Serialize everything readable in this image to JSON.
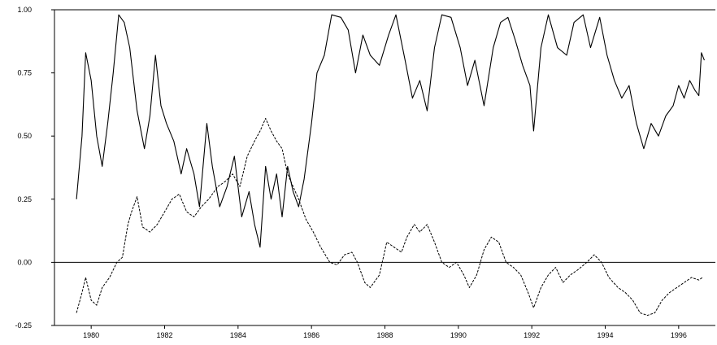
{
  "chart_data": {
    "type": "line",
    "title": "",
    "xlabel": "",
    "ylabel": "",
    "xlim": [
      1979.0,
      1997.0
    ],
    "ylim": [
      -0.25,
      1.0
    ],
    "x_ticks": [
      1980,
      1982,
      1984,
      1986,
      1988,
      1990,
      1992,
      1994,
      1996
    ],
    "x_tick_labels": [
      "1980",
      "1982",
      "1984",
      "1986",
      "1988",
      "1990",
      "1992",
      "1994",
      "1996"
    ],
    "y_ticks": [
      -0.25,
      0.0,
      0.25,
      0.5,
      0.75,
      1.0
    ],
    "y_tick_labels": [
      "-0.25",
      "0.00",
      "0.25",
      "0.50",
      "0.75",
      "1.00"
    ],
    "reference_lines_y": [
      0.0,
      1.0
    ],
    "grid": false,
    "legend": "none",
    "series": [
      {
        "style": "solid",
        "points": [
          [
            1979.6,
            0.25
          ],
          [
            1979.75,
            0.5
          ],
          [
            1979.85,
            0.83
          ],
          [
            1980.0,
            0.72
          ],
          [
            1980.15,
            0.5
          ],
          [
            1980.3,
            0.38
          ],
          [
            1980.45,
            0.55
          ],
          [
            1980.6,
            0.75
          ],
          [
            1980.75,
            0.98
          ],
          [
            1980.9,
            0.95
          ],
          [
            1981.05,
            0.85
          ],
          [
            1981.25,
            0.6
          ],
          [
            1981.45,
            0.45
          ],
          [
            1981.6,
            0.58
          ],
          [
            1981.75,
            0.82
          ],
          [
            1981.9,
            0.62
          ],
          [
            1982.05,
            0.55
          ],
          [
            1982.25,
            0.48
          ],
          [
            1982.45,
            0.35
          ],
          [
            1982.6,
            0.45
          ],
          [
            1982.8,
            0.35
          ],
          [
            1982.95,
            0.22
          ],
          [
            1983.15,
            0.55
          ],
          [
            1983.3,
            0.38
          ],
          [
            1983.5,
            0.22
          ],
          [
            1983.7,
            0.3
          ],
          [
            1983.9,
            0.42
          ],
          [
            1984.1,
            0.18
          ],
          [
            1984.3,
            0.28
          ],
          [
            1984.45,
            0.15
          ],
          [
            1984.6,
            0.06
          ],
          [
            1984.75,
            0.38
          ],
          [
            1984.9,
            0.25
          ],
          [
            1985.05,
            0.35
          ],
          [
            1985.2,
            0.18
          ],
          [
            1985.35,
            0.38
          ],
          [
            1985.5,
            0.28
          ],
          [
            1985.65,
            0.22
          ],
          [
            1985.8,
            0.33
          ],
          [
            1986.0,
            0.55
          ],
          [
            1986.15,
            0.75
          ],
          [
            1986.35,
            0.82
          ],
          [
            1986.55,
            0.98
          ],
          [
            1986.8,
            0.97
          ],
          [
            1987.0,
            0.92
          ],
          [
            1987.2,
            0.75
          ],
          [
            1987.4,
            0.9
          ],
          [
            1987.6,
            0.82
          ],
          [
            1987.85,
            0.78
          ],
          [
            1988.1,
            0.9
          ],
          [
            1988.3,
            0.98
          ],
          [
            1988.55,
            0.8
          ],
          [
            1988.75,
            0.65
          ],
          [
            1988.95,
            0.72
          ],
          [
            1989.15,
            0.6
          ],
          [
            1989.35,
            0.85
          ],
          [
            1989.55,
            0.98
          ],
          [
            1989.8,
            0.97
          ],
          [
            1990.05,
            0.85
          ],
          [
            1990.25,
            0.7
          ],
          [
            1990.45,
            0.8
          ],
          [
            1990.7,
            0.62
          ],
          [
            1990.95,
            0.85
          ],
          [
            1991.15,
            0.95
          ],
          [
            1991.35,
            0.97
          ],
          [
            1991.55,
            0.88
          ],
          [
            1991.75,
            0.78
          ],
          [
            1991.95,
            0.7
          ],
          [
            1992.05,
            0.52
          ],
          [
            1992.25,
            0.85
          ],
          [
            1992.45,
            0.98
          ],
          [
            1992.7,
            0.85
          ],
          [
            1992.95,
            0.82
          ],
          [
            1993.15,
            0.95
          ],
          [
            1993.4,
            0.98
          ],
          [
            1993.6,
            0.85
          ],
          [
            1993.85,
            0.97
          ],
          [
            1994.05,
            0.82
          ],
          [
            1994.25,
            0.72
          ],
          [
            1994.45,
            0.65
          ],
          [
            1994.65,
            0.7
          ],
          [
            1994.85,
            0.55
          ],
          [
            1995.05,
            0.45
          ],
          [
            1995.25,
            0.55
          ],
          [
            1995.45,
            0.5
          ],
          [
            1995.65,
            0.58
          ],
          [
            1995.85,
            0.62
          ],
          [
            1996.0,
            0.7
          ],
          [
            1996.15,
            0.65
          ],
          [
            1996.3,
            0.72
          ],
          [
            1996.45,
            0.68
          ],
          [
            1996.55,
            0.66
          ],
          [
            1996.62,
            0.83
          ],
          [
            1996.7,
            0.8
          ]
        ]
      },
      {
        "style": "dashed",
        "points": [
          [
            1979.6,
            -0.2
          ],
          [
            1979.75,
            -0.12
          ],
          [
            1979.85,
            -0.06
          ],
          [
            1980.0,
            -0.15
          ],
          [
            1980.15,
            -0.17
          ],
          [
            1980.3,
            -0.1
          ],
          [
            1980.5,
            -0.06
          ],
          [
            1980.7,
            0.0
          ],
          [
            1980.85,
            0.02
          ],
          [
            1981.0,
            0.15
          ],
          [
            1981.1,
            0.2
          ],
          [
            1981.25,
            0.26
          ],
          [
            1981.4,
            0.14
          ],
          [
            1981.6,
            0.12
          ],
          [
            1981.8,
            0.15
          ],
          [
            1982.0,
            0.2
          ],
          [
            1982.2,
            0.25
          ],
          [
            1982.4,
            0.27
          ],
          [
            1982.6,
            0.2
          ],
          [
            1982.8,
            0.18
          ],
          [
            1983.0,
            0.22
          ],
          [
            1983.2,
            0.25
          ],
          [
            1983.45,
            0.3
          ],
          [
            1983.65,
            0.32
          ],
          [
            1983.85,
            0.35
          ],
          [
            1984.05,
            0.3
          ],
          [
            1984.25,
            0.42
          ],
          [
            1984.45,
            0.48
          ],
          [
            1984.6,
            0.52
          ],
          [
            1984.75,
            0.57
          ],
          [
            1984.9,
            0.52
          ],
          [
            1985.05,
            0.48
          ],
          [
            1985.2,
            0.45
          ],
          [
            1985.35,
            0.35
          ],
          [
            1985.5,
            0.3
          ],
          [
            1985.65,
            0.25
          ],
          [
            1985.85,
            0.17
          ],
          [
            1986.05,
            0.12
          ],
          [
            1986.25,
            0.06
          ],
          [
            1986.5,
            0.0
          ],
          [
            1986.7,
            -0.01
          ],
          [
            1986.9,
            0.03
          ],
          [
            1987.1,
            0.04
          ],
          [
            1987.25,
            0.0
          ],
          [
            1987.45,
            -0.08
          ],
          [
            1987.6,
            -0.1
          ],
          [
            1987.85,
            -0.05
          ],
          [
            1988.05,
            0.08
          ],
          [
            1988.25,
            0.06
          ],
          [
            1988.45,
            0.04
          ],
          [
            1988.6,
            0.1
          ],
          [
            1988.8,
            0.15
          ],
          [
            1988.95,
            0.12
          ],
          [
            1989.15,
            0.15
          ],
          [
            1989.35,
            0.08
          ],
          [
            1989.55,
            0.0
          ],
          [
            1989.75,
            -0.02
          ],
          [
            1989.95,
            0.0
          ],
          [
            1990.15,
            -0.05
          ],
          [
            1990.3,
            -0.1
          ],
          [
            1990.5,
            -0.05
          ],
          [
            1990.7,
            0.05
          ],
          [
            1990.9,
            0.1
          ],
          [
            1991.1,
            0.08
          ],
          [
            1991.3,
            0.0
          ],
          [
            1991.5,
            -0.02
          ],
          [
            1991.7,
            -0.05
          ],
          [
            1991.9,
            -0.12
          ],
          [
            1992.05,
            -0.18
          ],
          [
            1992.25,
            -0.1
          ],
          [
            1992.45,
            -0.05
          ],
          [
            1992.65,
            -0.02
          ],
          [
            1992.85,
            -0.08
          ],
          [
            1993.05,
            -0.05
          ],
          [
            1993.25,
            -0.03
          ],
          [
            1993.5,
            0.0
          ],
          [
            1993.7,
            0.03
          ],
          [
            1993.9,
            0.0
          ],
          [
            1994.1,
            -0.06
          ],
          [
            1994.35,
            -0.1
          ],
          [
            1994.55,
            -0.12
          ],
          [
            1994.75,
            -0.15
          ],
          [
            1994.95,
            -0.2
          ],
          [
            1995.15,
            -0.21
          ],
          [
            1995.35,
            -0.2
          ],
          [
            1995.55,
            -0.15
          ],
          [
            1995.75,
            -0.12
          ],
          [
            1995.95,
            -0.1
          ],
          [
            1996.15,
            -0.08
          ],
          [
            1996.35,
            -0.06
          ],
          [
            1996.55,
            -0.07
          ],
          [
            1996.65,
            -0.06
          ]
        ]
      }
    ]
  }
}
